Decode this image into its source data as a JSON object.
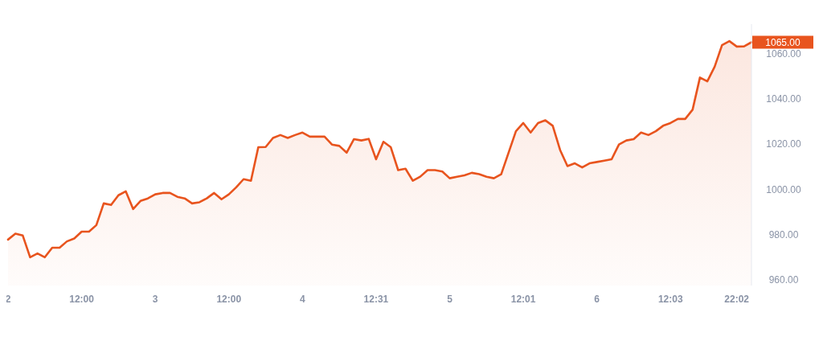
{
  "chart_data": {
    "type": "area",
    "categories": [
      "2",
      null,
      null,
      null,
      null,
      null,
      null,
      null,
      null,
      null,
      "12:00",
      null,
      null,
      null,
      null,
      null,
      null,
      null,
      null,
      null,
      "3",
      null,
      null,
      null,
      null,
      null,
      null,
      null,
      null,
      null,
      "12:00",
      null,
      null,
      null,
      null,
      null,
      null,
      null,
      null,
      null,
      "4",
      null,
      null,
      null,
      null,
      null,
      null,
      null,
      null,
      null,
      "12:31",
      null,
      null,
      null,
      null,
      null,
      null,
      null,
      null,
      null,
      "5",
      null,
      null,
      null,
      null,
      null,
      null,
      null,
      null,
      null,
      "12:01",
      null,
      null,
      null,
      null,
      null,
      null,
      null,
      null,
      null,
      "6",
      null,
      null,
      null,
      null,
      null,
      null,
      null,
      null,
      null,
      "12:03",
      null,
      null,
      null,
      null,
      null,
      null,
      null,
      null,
      "22:02",
      null,
      null
    ],
    "series": [
      {
        "color": "#e8541e",
        "values": [
          977.8,
          980.4,
          979.6,
          970,
          971.7,
          970,
          974.2,
          974.2,
          977,
          978.3,
          981.3,
          981.3,
          984.2,
          993.8,
          993.1,
          997.4,
          999.1,
          991.3,
          994.9,
          996,
          997.8,
          998.4,
          998.4,
          996.7,
          996,
          993.8,
          994.3,
          996,
          998.4,
          995.6,
          997.8,
          1000.9,
          1004.5,
          1003.8,
          1018.6,
          1018.7,
          1022.7,
          1024,
          1022.7,
          1024,
          1025.1,
          1023.3,
          1023.3,
          1023.3,
          1019.8,
          1019.2,
          1016.2,
          1022.2,
          1021.6,
          1022.3,
          1013.3,
          1021,
          1018.6,
          1008.5,
          1009.1,
          1003.8,
          1005.6,
          1008.5,
          1008.5,
          1007.9,
          1004.9,
          1005.6,
          1006.2,
          1007.3,
          1006.7,
          1005.6,
          1004.9,
          1006.7,
          1016.2,
          1025.7,
          1029.3,
          1025.1,
          1029.3,
          1030.5,
          1028.1,
          1017.4,
          1010.3,
          1011.5,
          1009.7,
          1011.5,
          1012.1,
          1012.7,
          1013.3,
          1019.8,
          1021.6,
          1022.2,
          1025.1,
          1024,
          1025.7,
          1028.1,
          1029.3,
          1031.1,
          1031.1,
          1035.2,
          1049.4,
          1047.7,
          1054.2,
          1063.7,
          1065.5,
          1063.1,
          1063.2,
          1065
        ]
      }
    ],
    "ylim": [
      957.5,
      1073
    ],
    "yticks": [
      {
        "value": 960,
        "label": "960.00"
      },
      {
        "value": 980,
        "label": "980.00"
      },
      {
        "value": 1000,
        "label": "1000.00"
      },
      {
        "value": 1020,
        "label": "1020.00"
      },
      {
        "value": 1040,
        "label": "1040.00"
      },
      {
        "value": 1060,
        "label": "1060.00"
      }
    ],
    "grid": false,
    "annotations": [
      "1065.00"
    ]
  }
}
